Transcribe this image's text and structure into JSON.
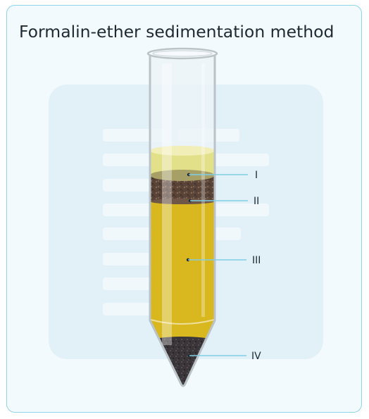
{
  "title": "Formalin-ether sedimentation method",
  "layers": [
    {
      "label": "I"
    },
    {
      "label": "II"
    },
    {
      "label": "III"
    },
    {
      "label": "IV"
    }
  ],
  "colors": {
    "border": "#8ed4ea",
    "background": "#f3fafd",
    "leader_line": "#7fcde6",
    "ether_layer": "#e3e08a",
    "debris_plug": "#5a4438",
    "formalin": "#d8b81e",
    "sediment": "#3a3538"
  }
}
